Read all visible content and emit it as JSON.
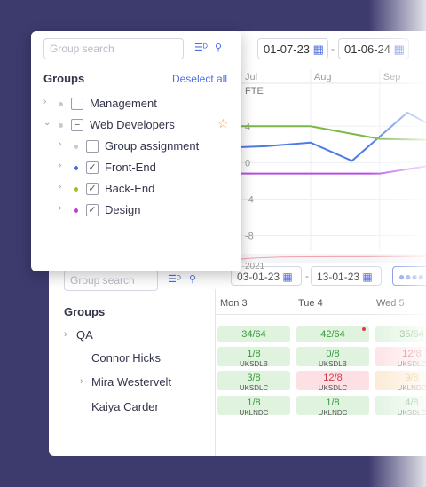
{
  "popup": {
    "search_placeholder": "Group search",
    "title": "Groups",
    "deselect": "Deselect all",
    "items": [
      {
        "label": "Management",
        "level": 0,
        "dot": "#c9c9d2",
        "check": "unchecked",
        "expanded": false
      },
      {
        "label": "Web Developers",
        "level": 0,
        "dot": "#c9c9d2",
        "check": "mixed",
        "expanded": true,
        "favorite": true
      },
      {
        "label": "Group assignment",
        "level": 1,
        "dot": "#c9c9d2",
        "check": "unchecked",
        "expanded": false
      },
      {
        "label": "Front-End",
        "level": 1,
        "dot": "#3b6fe0",
        "check": "checked",
        "expanded": false
      },
      {
        "label": "Back-End",
        "level": 1,
        "dot": "#9ac21a",
        "check": "checked",
        "expanded": false
      },
      {
        "label": "Design",
        "level": 1,
        "dot": "#c23ad6",
        "check": "checked",
        "expanded": false
      }
    ]
  },
  "chart_data": {
    "type": "line",
    "date_from": "01-07-23",
    "date_to": "01-06-24",
    "y_label": "FTE",
    "year_label": "2021",
    "xlim": [
      0,
      2.67
    ],
    "xticks": [
      {
        "value": 0,
        "label": "Jul"
      },
      {
        "value": 1,
        "label": "Aug"
      },
      {
        "value": 2,
        "label": "Sep"
      }
    ],
    "ylim": [
      -9.7,
      8.6
    ],
    "yticks": [
      4,
      0,
      -4,
      -8
    ],
    "grid": true,
    "series": [
      {
        "color": "#4d7be6",
        "x": [
          0,
          0.35,
          1,
          1.6,
          2.4,
          2.67
        ],
        "values": [
          1.7,
          1.8,
          2.2,
          0.2,
          5.5,
          4.4
        ]
      },
      {
        "color": "#7ab84a",
        "x": [
          0,
          1,
          2,
          2.67
        ],
        "values": [
          4,
          4,
          2.6,
          2.5
        ]
      },
      {
        "color": "#b54ee8",
        "x": [
          0,
          2,
          2.67
        ],
        "values": [
          -1.2,
          -1.2,
          -0.4
        ]
      }
    ]
  },
  "schedule": {
    "search_placeholder": "Group search",
    "title": "Groups",
    "date_from": "03-01-23",
    "date_to": "13-01-23",
    "days": [
      "Mon 3",
      "Tue 4",
      "Wed 5"
    ],
    "rows": [
      {
        "label": "QA",
        "level": 0,
        "cells": [
          {
            "value": "34/64",
            "color": "green"
          },
          {
            "value": "42/64",
            "color": "green",
            "alert": true
          },
          {
            "value": "35/64",
            "color": "green"
          }
        ]
      },
      {
        "label": "Connor Hicks",
        "level": 1,
        "cells": [
          {
            "value": "1/8",
            "code": "UKSDLB",
            "color": "green"
          },
          {
            "value": "0/8",
            "code": "UKSDLB",
            "color": "green"
          },
          {
            "value": "12/8",
            "code": "UKSDLC",
            "color": "red"
          }
        ]
      },
      {
        "label": "Mira Westervelt",
        "level": 1,
        "expandable": true,
        "cells": [
          {
            "value": "3/8",
            "code": "UKSDLC",
            "color": "green"
          },
          {
            "value": "12/8",
            "code": "UKSDLC",
            "color": "red"
          },
          {
            "value": "9/8",
            "code": "UKLNDC",
            "color": "orange"
          }
        ]
      },
      {
        "label": "Kaiya Carder",
        "level": 1,
        "cells": [
          {
            "value": "1/8",
            "code": "UKLNDC",
            "color": "green"
          },
          {
            "value": "1/8",
            "code": "UKLNDC",
            "color": "green"
          },
          {
            "value": "4/8",
            "code": "UKSDLC",
            "color": "green"
          }
        ]
      }
    ]
  }
}
